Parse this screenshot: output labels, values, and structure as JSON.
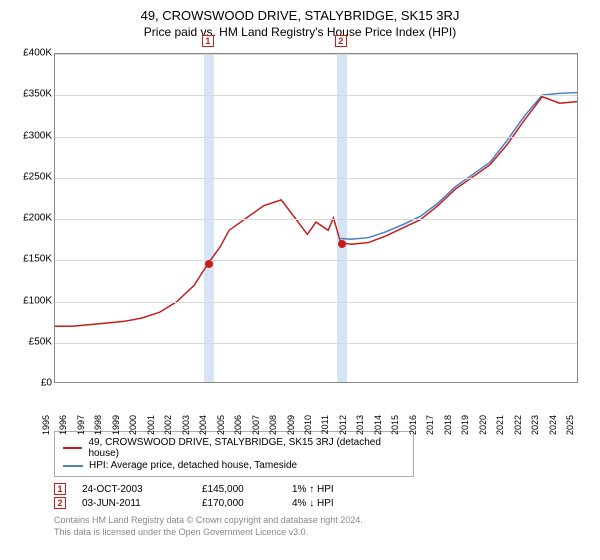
{
  "title": "49, CROWSWOOD DRIVE, STALYBRIDGE, SK15 3RJ",
  "subtitle": "Price paid vs. HM Land Registry's House Price Index (HPI)",
  "chart": {
    "type": "line",
    "xlim": [
      1995,
      2025
    ],
    "ylim": [
      0,
      400000
    ],
    "ytick_step": 50000,
    "yticks": [
      "£0",
      "£50K",
      "£100K",
      "£150K",
      "£200K",
      "£250K",
      "£300K",
      "£350K",
      "£400K"
    ],
    "xticks": [
      1995,
      1996,
      1997,
      1998,
      1999,
      2000,
      2001,
      2002,
      2003,
      2004,
      2005,
      2006,
      2007,
      2008,
      2009,
      2010,
      2011,
      2012,
      2013,
      2014,
      2015,
      2016,
      2017,
      2018,
      2019,
      2020,
      2021,
      2022,
      2023,
      2024,
      2025
    ],
    "grid_color": "#d9d9d9",
    "background_color": "#ffffff",
    "band_color": "#d6e4f5",
    "series": {
      "prop": {
        "color": "#c41e1e",
        "width": 1.5,
        "points": [
          [
            1995,
            68000
          ],
          [
            1996,
            68000
          ],
          [
            1997,
            70000
          ],
          [
            1998,
            72000
          ],
          [
            1999,
            74000
          ],
          [
            2000,
            78000
          ],
          [
            2001,
            85000
          ],
          [
            2002,
            98000
          ],
          [
            2003,
            118000
          ],
          [
            2003.81,
            145000
          ],
          [
            2004.5,
            165000
          ],
          [
            2005,
            185000
          ],
          [
            2006,
            200000
          ],
          [
            2007,
            215000
          ],
          [
            2008,
            222000
          ],
          [
            2008.8,
            200000
          ],
          [
            2009.5,
            180000
          ],
          [
            2010,
            195000
          ],
          [
            2010.7,
            185000
          ],
          [
            2011.0,
            200000
          ],
          [
            2011.42,
            170000
          ],
          [
            2012,
            168000
          ],
          [
            2013,
            170000
          ],
          [
            2014,
            178000
          ],
          [
            2015,
            188000
          ],
          [
            2016,
            198000
          ],
          [
            2017,
            215000
          ],
          [
            2018,
            235000
          ],
          [
            2019,
            250000
          ],
          [
            2020,
            265000
          ],
          [
            2021,
            290000
          ],
          [
            2022,
            320000
          ],
          [
            2023,
            348000
          ],
          [
            2024,
            340000
          ],
          [
            2025,
            342000
          ]
        ]
      },
      "hpi": {
        "color": "#4a7fc4",
        "width": 1.5,
        "points": [
          [
            2011.42,
            175000
          ],
          [
            2012,
            174000
          ],
          [
            2013,
            176000
          ],
          [
            2014,
            183000
          ],
          [
            2015,
            192000
          ],
          [
            2016,
            202000
          ],
          [
            2017,
            218000
          ],
          [
            2018,
            238000
          ],
          [
            2019,
            253000
          ],
          [
            2020,
            268000
          ],
          [
            2021,
            295000
          ],
          [
            2022,
            325000
          ],
          [
            2023,
            350000
          ],
          [
            2024,
            352000
          ],
          [
            2025,
            353000
          ]
        ]
      }
    },
    "sale_points": [
      {
        "x": 2003.81,
        "y": 145000,
        "color": "#c41e1e"
      },
      {
        "x": 2011.42,
        "y": 170000,
        "color": "#c41e1e"
      }
    ],
    "markers": [
      {
        "label": "1",
        "x": 2003.81,
        "band_width": 0.6,
        "color": "#c41e1e"
      },
      {
        "label": "2",
        "x": 2011.42,
        "band_width": 0.6,
        "color": "#c41e1e"
      }
    ]
  },
  "legend": {
    "items": [
      {
        "color": "#c41e1e",
        "label": "49, CROWSWOOD DRIVE, STALYBRIDGE, SK15 3RJ (detached house)"
      },
      {
        "color": "#4a7fc4",
        "label": "HPI: Average price, detached house, Tameside"
      }
    ]
  },
  "sales": [
    {
      "n": "1",
      "color": "#c41e1e",
      "date": "24-OCT-2003",
      "price": "£145,000",
      "diff": "1% ↑ HPI"
    },
    {
      "n": "2",
      "color": "#c41e1e",
      "date": "03-JUN-2011",
      "price": "£170,000",
      "diff": "4% ↓ HPI"
    }
  ],
  "footnote_l1": "Contains HM Land Registry data © Crown copyright and database right 2024.",
  "footnote_l2": "This data is licensed under the Open Government Licence v3.0."
}
